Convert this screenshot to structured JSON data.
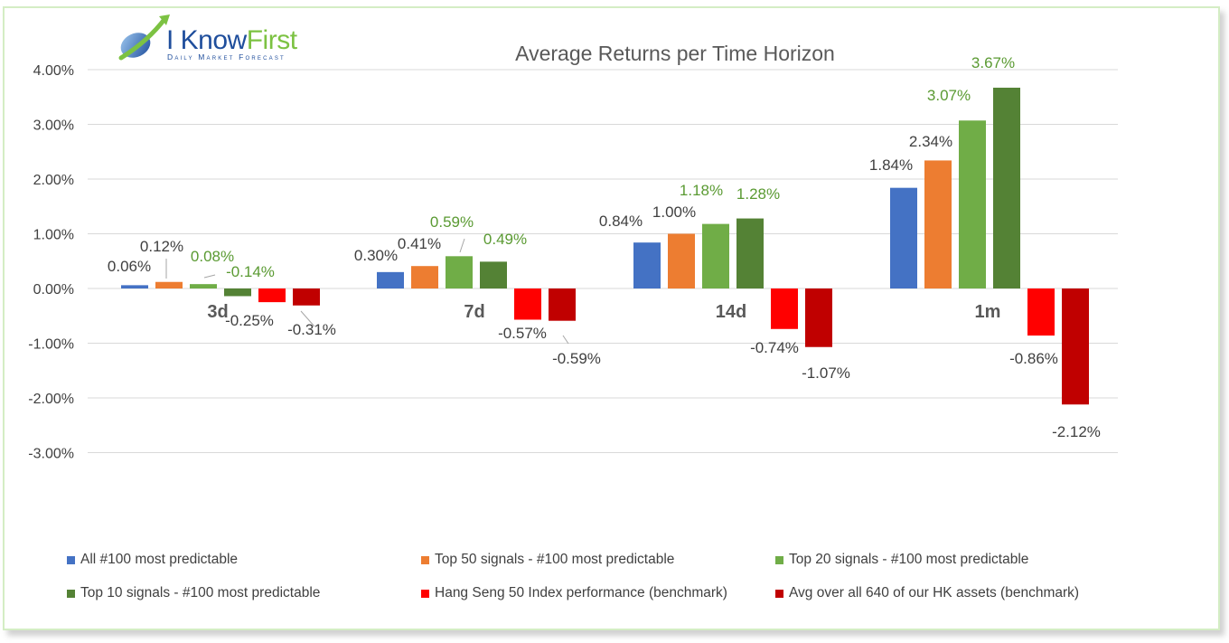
{
  "logo": {
    "brand_primary": "I Know",
    "brand_secondary": "First",
    "tagline": "Daily Market Forecast"
  },
  "chart_data": {
    "type": "bar",
    "title": "Average Returns per Time Horizon",
    "xlabel": "",
    "ylabel": "",
    "ylim": [
      -3.0,
      4.0
    ],
    "yticks": [
      4.0,
      3.0,
      2.0,
      1.0,
      0.0,
      -1.0,
      -2.0,
      -3.0
    ],
    "ytick_labels": [
      "4.00%",
      "3.00%",
      "2.00%",
      "1.00%",
      "0.00%",
      "-1.00%",
      "-2.00%",
      "-3.00%"
    ],
    "grid": true,
    "legend_position": "bottom",
    "categories": [
      "3d",
      "7d",
      "14d",
      "1m"
    ],
    "series": [
      {
        "name": "All #100 most predictable",
        "color": "#4472c4",
        "label_color": "#404040",
        "values": [
          0.06,
          0.3,
          0.84,
          1.84
        ],
        "labels": [
          "0.06%",
          "0.30%",
          "0.84%",
          "1.84%"
        ]
      },
      {
        "name": "Top 50 signals - #100 most predictable",
        "color": "#ed7d31",
        "label_color": "#404040",
        "values": [
          0.12,
          0.41,
          1.0,
          2.34
        ],
        "labels": [
          "0.12%",
          "0.41%",
          "1.00%",
          "2.34%"
        ]
      },
      {
        "name": "Top 20 signals - #100 most predictable",
        "color": "#70ad47",
        "label_color": "#5a9a32",
        "values": [
          0.08,
          0.59,
          1.18,
          3.07
        ],
        "labels": [
          "0.08%",
          "0.59%",
          "1.18%",
          "3.07%"
        ]
      },
      {
        "name": "Top 10 signals - #100 most predictable",
        "color": "#548235",
        "label_color": "#5a9a32",
        "values": [
          -0.14,
          0.49,
          1.28,
          3.67
        ],
        "labels": [
          "-0.14%",
          "0.49%",
          "1.28%",
          "3.67%"
        ]
      },
      {
        "name": "Hang Seng 50 Index performance (benchmark)",
        "color": "#ff0000",
        "label_color": "#404040",
        "values": [
          -0.25,
          -0.57,
          -0.74,
          -0.86
        ],
        "labels": [
          "-0.25%",
          "-0.57%",
          "-0.74%",
          "-0.86%"
        ]
      },
      {
        "name": "Avg over all 640 of our HK assets (benchmark)",
        "color": "#c00000",
        "label_color": "#404040",
        "values": [
          -0.31,
          -0.59,
          -1.07,
          -2.12
        ],
        "labels": [
          "-0.31%",
          "-0.59%",
          "-1.07%",
          "-2.12%"
        ]
      }
    ]
  }
}
